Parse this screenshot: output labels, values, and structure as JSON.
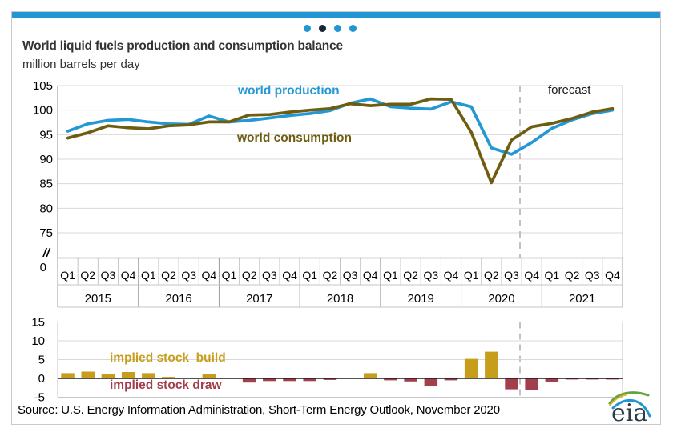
{
  "page": {
    "title": "World liquid fuels production and consumption balance",
    "subtitle": "million barrels per day",
    "source": "Source: U.S. Energy Information Administration, Short-Term Energy Outlook, November 2020",
    "logo_text": "eia",
    "carousel": {
      "dot_count": 4,
      "active_index": 1
    }
  },
  "colors": {
    "accent_blue": "#2196D2",
    "dot_active": "#1B2530",
    "production_line": "#2398D5",
    "consumption_line": "#6E5D11",
    "build_bar": "#C79E1C",
    "draw_bar": "#A33E4C",
    "grid": "#D9D9D9",
    "axis_light": "#C6C6C6",
    "axis_dark": "#8C8C8C",
    "year_sep": "#9C9C9C",
    "zero_line": "#1A1A1A",
    "forecast_dash": "#A9A9A9",
    "title_text": "#333333",
    "tick_text": "#000000"
  },
  "chart_data": [
    {
      "type": "line",
      "title": "World liquid fuels production and consumption balance",
      "units": "million barrels per day",
      "quarter_labels": [
        "Q1",
        "Q2",
        "Q3",
        "Q4"
      ],
      "years": [
        "2015",
        "2016",
        "2017",
        "2018",
        "2019",
        "2020",
        "2021"
      ],
      "y_ticks": [
        105,
        100,
        95,
        90,
        85,
        80,
        75
      ],
      "y_axis_break_label": "//",
      "y_axis_base_label": "0",
      "ylim_display": [
        75,
        105
      ],
      "grid": true,
      "legend_position": "inline-annotations",
      "forecast_label": "forecast",
      "forecast_start": "2020 Q4",
      "series": [
        {
          "name": "world production",
          "values": [
            95.7,
            97.2,
            97.9,
            98.1,
            97.6,
            97.2,
            97.1,
            98.8,
            97.6,
            97.9,
            98.4,
            98.9,
            99.3,
            99.9,
            101.4,
            102.3,
            100.7,
            100.4,
            100.2,
            101.7,
            100.7,
            92.3,
            91.0,
            93.4,
            96.3,
            98.0,
            99.3,
            100.0
          ]
        },
        {
          "name": "world consumption",
          "values": [
            94.3,
            95.4,
            96.8,
            96.4,
            96.2,
            96.8,
            97.0,
            97.6,
            97.6,
            99.0,
            99.1,
            99.6,
            100.0,
            100.3,
            101.3,
            100.9,
            101.2,
            101.2,
            102.3,
            102.2,
            95.5,
            85.2,
            93.9,
            96.6,
            97.3,
            98.3,
            99.6,
            100.3
          ]
        }
      ]
    },
    {
      "type": "bar",
      "name": "implied stock change (production minus consumption)",
      "build_label": "implied stock  build",
      "draw_label": "implied stock draw",
      "y_ticks": [
        15,
        10,
        5,
        0,
        -5
      ],
      "ylim": [
        -5,
        15
      ],
      "values": [
        1.4,
        1.8,
        1.1,
        1.7,
        1.4,
        0.4,
        0.1,
        1.2,
        0.0,
        -1.1,
        -0.7,
        -0.7,
        -0.7,
        -0.4,
        0.1,
        1.4,
        -0.5,
        -0.8,
        -2.1,
        -0.5,
        5.2,
        7.1,
        -2.9,
        -3.2,
        -1.0,
        -0.3,
        -0.3,
        -0.3
      ]
    }
  ]
}
